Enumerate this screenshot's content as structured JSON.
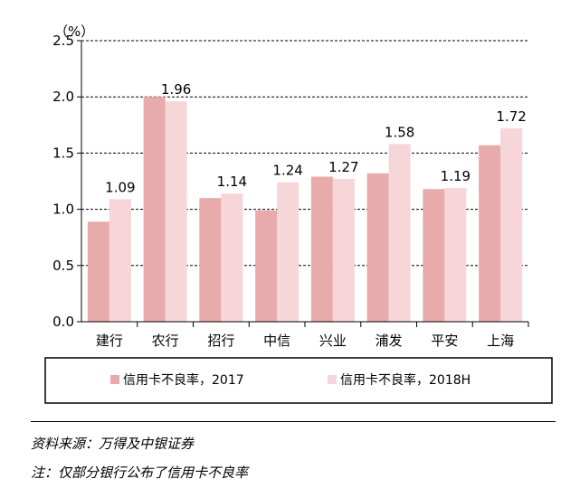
{
  "chart_data": {
    "type": "bar",
    "unit_label": "（%）",
    "categories": [
      "建行",
      "农行",
      "招行",
      "中信",
      "兴业",
      "浦发",
      "平安",
      "上海"
    ],
    "series": [
      {
        "name": "信用卡不良率，2017",
        "values": [
          0.89,
          2.0,
          1.1,
          0.99,
          1.29,
          1.32,
          1.18,
          1.57
        ],
        "color": "#e8aaaa"
      },
      {
        "name": "信用卡不良率，2018H",
        "values": [
          1.09,
          1.96,
          1.14,
          1.24,
          1.27,
          1.58,
          1.19,
          1.72
        ],
        "color": "#f6d6d8"
      }
    ],
    "data_labels": [
      "1.09",
      "1.96",
      "1.14",
      "1.24",
      "1.27",
      "1.58",
      "1.19",
      "1.72"
    ],
    "ylim": [
      0,
      2.5
    ],
    "yticks": [
      "0.0",
      "0.5",
      "1.0",
      "1.5",
      "2.0",
      "2.5"
    ],
    "grid": true,
    "legend_position": "bottom"
  },
  "footer": {
    "source": "资料来源：万得及中银证券",
    "note": "注：仅部分银行公布了信用卡不良率"
  }
}
